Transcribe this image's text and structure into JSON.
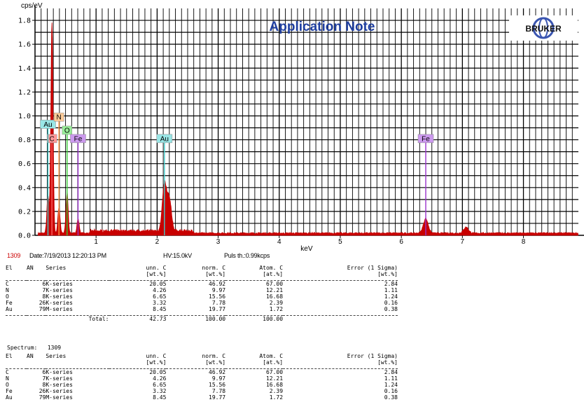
{
  "header": {
    "banner_title": "Application Note",
    "logo_text": "BRUKER"
  },
  "chart_data": {
    "type": "line",
    "title": "",
    "xlabel": "keV",
    "ylabel": "cps/eV",
    "xlim": [
      0,
      8.9
    ],
    "ylim": [
      0,
      1.9
    ],
    "x_ticks": [
      1,
      2,
      3,
      4,
      5,
      6,
      7,
      8
    ],
    "y_ticks": [
      0.0,
      0.2,
      0.4,
      0.6,
      0.8,
      1.0,
      1.2,
      1.4,
      1.6,
      1.8
    ],
    "grid": true,
    "series_color": "#c80000",
    "peaks": [
      {
        "x": 0.277,
        "y": 1.76
      },
      {
        "x": 0.212,
        "y": 0.31
      },
      {
        "x": 0.392,
        "y": 0.22
      },
      {
        "x": 0.525,
        "y": 0.34
      },
      {
        "x": 0.705,
        "y": 0.12
      },
      {
        "x": 2.12,
        "y": 0.39
      },
      {
        "x": 2.2,
        "y": 0.26
      },
      {
        "x": 6.4,
        "y": 0.12
      },
      {
        "x": 7.06,
        "y": 0.05
      }
    ],
    "element_markers": [
      {
        "label": "C",
        "x": 0.277,
        "y": 0.81,
        "color": "#ff9999"
      },
      {
        "label": "Au",
        "x": 0.212,
        "y": 0.93,
        "color": "#99e6e6"
      },
      {
        "label": "N",
        "x": 0.392,
        "y": 0.99,
        "color": "#ffcc99"
      },
      {
        "label": "O",
        "x": 0.525,
        "y": 0.88,
        "color": "#99ee99"
      },
      {
        "label": "Fe",
        "x": 0.705,
        "y": 0.81,
        "color": "#cc99ee"
      },
      {
        "label": "Au",
        "x": 2.12,
        "y": 0.81,
        "color": "#99e6e6"
      },
      {
        "label": "Fe",
        "x": 6.4,
        "y": 0.81,
        "color": "#cc99ee"
      }
    ]
  },
  "status": {
    "spectrum_id": "1309",
    "date": "Date:7/19/2013 12:20:13 PM",
    "hv": "HV:15.0kV",
    "puls": "Puls th.:0.99kcps"
  },
  "table1": {
    "header_row1": [
      "El",
      "AN",
      "Series",
      "unn. C",
      "norm. C",
      "Atom. C",
      "Error (1 Sigma)"
    ],
    "header_row2": [
      "",
      "",
      "",
      "[wt.%]",
      "[wt.%]",
      "[at.%]",
      "[wt.%]"
    ],
    "rows": [
      [
        "C",
        "6",
        "K-series",
        "20.05",
        "46.92",
        "67.00",
        "2.84"
      ],
      [
        "N",
        "7",
        "K-series",
        "4.26",
        "9.97",
        "12.21",
        "1.11"
      ],
      [
        "O",
        "8",
        "K-series",
        "6.65",
        "15.56",
        "16.68",
        "1.24"
      ],
      [
        "Fe",
        "26",
        "K-series",
        "3.32",
        "7.78",
        "2.39",
        "0.16"
      ],
      [
        "Au",
        "79",
        "M-series",
        "8.45",
        "19.77",
        "1.72",
        "0.38"
      ]
    ],
    "total_label": "Total:",
    "totals": [
      "42.73",
      "100.00",
      "100.00"
    ]
  },
  "spectrum_heading": {
    "label": "Spectrum:",
    "value": "1309"
  },
  "table2": {
    "header_row1": [
      "El",
      "AN",
      "Series",
      "unn. C",
      "norm. C",
      "Atom. C",
      "Error (1 Sigma)"
    ],
    "header_row2": [
      "",
      "",
      "",
      "[wt.%]",
      "[wt.%]",
      "[at.%]",
      "[wt.%]"
    ],
    "rows": [
      [
        "C",
        "6",
        "K-series",
        "20.05",
        "46.92",
        "67.00",
        "2.84"
      ],
      [
        "N",
        "7",
        "K-series",
        "4.26",
        "9.97",
        "12.21",
        "1.11"
      ],
      [
        "O",
        "8",
        "K-series",
        "6.65",
        "15.56",
        "16.68",
        "1.24"
      ],
      [
        "Fe",
        "26",
        "K-series",
        "3.32",
        "7.78",
        "2.39",
        "0.16"
      ],
      [
        "Au",
        "79",
        "M-series",
        "8.45",
        "19.77",
        "1.72",
        "0.38"
      ]
    ]
  }
}
